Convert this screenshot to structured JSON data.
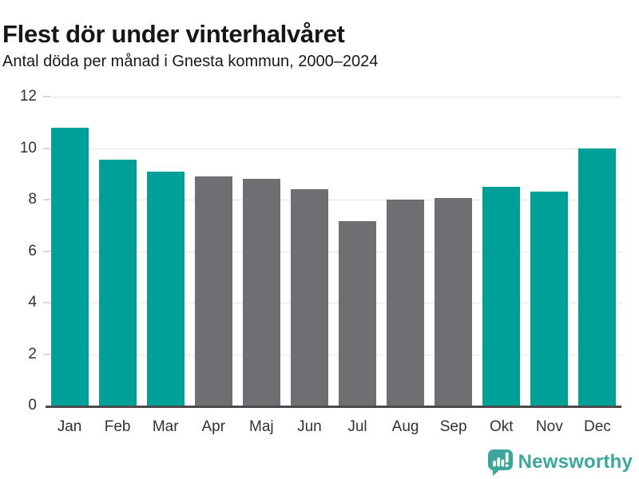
{
  "header": {
    "title": "Flest dör under vinterhalvåret",
    "subtitle": "Antal döda per månad i Gnesta kommun, 2000–2024"
  },
  "chart_data": {
    "type": "bar",
    "title": "Flest dör under vinterhalvåret",
    "subtitle": "Antal döda per månad i Gnesta kommun, 2000–2024",
    "categories": [
      "Jan",
      "Feb",
      "Mar",
      "Apr",
      "Maj",
      "Jun",
      "Jul",
      "Aug",
      "Sep",
      "Okt",
      "Nov",
      "Dec"
    ],
    "values": [
      10.8,
      9.55,
      9.1,
      8.9,
      8.8,
      8.4,
      7.15,
      8.0,
      8.05,
      8.5,
      8.3,
      10.0
    ],
    "bar_colors": [
      "#00A099",
      "#00A099",
      "#00A099",
      "#6E6E73",
      "#6E6E73",
      "#6E6E73",
      "#6E6E73",
      "#6E6E73",
      "#6E6E73",
      "#00A099",
      "#00A099",
      "#00A099"
    ],
    "highlight_color": "#00A099",
    "neutral_color": "#6E6E73",
    "xlabel": "",
    "ylabel": "",
    "ylim": [
      0,
      12
    ],
    "yticks": [
      0,
      2,
      4,
      6,
      8,
      10,
      12
    ],
    "grid": "horizontal",
    "legend": "none"
  },
  "footer": {
    "brand": "Newsworthy",
    "brand_color": "#3BA79B",
    "logo_icon": "newsworthy-chart-bubble-icon"
  }
}
